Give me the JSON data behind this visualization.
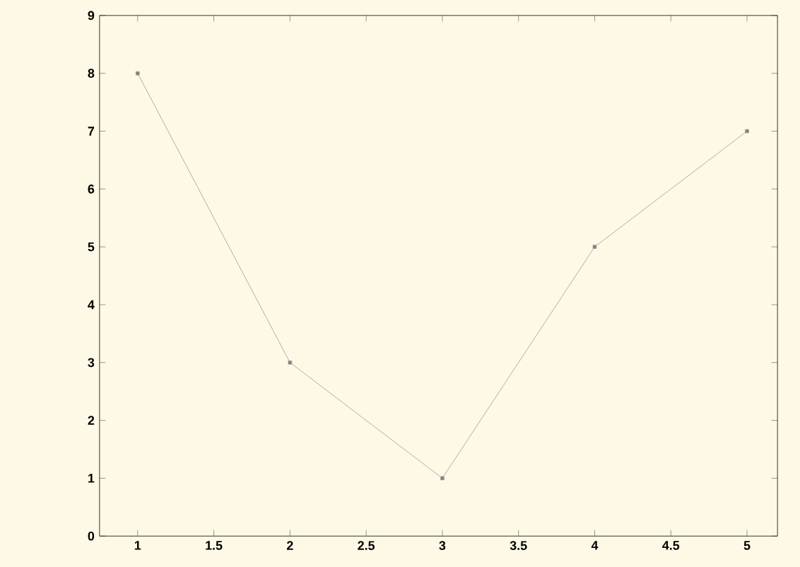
{
  "chart_data": {
    "type": "line",
    "x": [
      1,
      2,
      3,
      4,
      5
    ],
    "values": [
      8,
      3,
      1,
      5,
      7
    ],
    "color": "#9a9a9a",
    "marker": "square",
    "line_style": "solid",
    "xlim": [
      0.75,
      5.2
    ],
    "ylim": [
      0,
      9
    ],
    "xticks": [
      1,
      1.5,
      2,
      2.5,
      3,
      3.5,
      4,
      4.5,
      5
    ],
    "yticks": [
      0,
      1,
      2,
      3,
      4,
      5,
      6,
      7,
      8,
      9
    ],
    "grid": false
  }
}
